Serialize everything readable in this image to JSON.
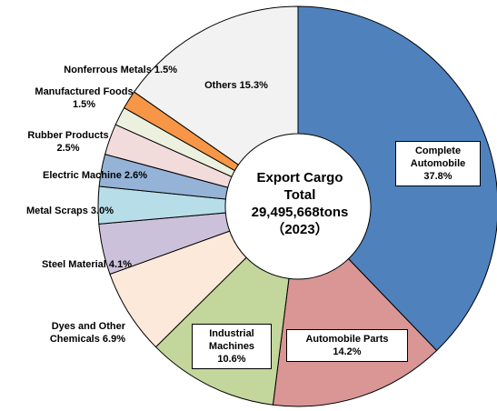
{
  "chart_data": {
    "type": "donut",
    "center_label": [
      "Export Cargo",
      "Total",
      "29,495,668tons",
      "（2023）"
    ],
    "categories": [
      "Complete Automobile",
      "Automobile Parts",
      "Industrial Machines",
      "Dyes and Other Chemicals",
      "Steel Material",
      "Metal Scraps",
      "Electric Machine",
      "Rubber Products",
      "Manufactured Foods",
      "Nonferrous Metals",
      "Others"
    ],
    "values": [
      37.8,
      14.2,
      10.6,
      6.9,
      4.1,
      3.0,
      2.6,
      2.5,
      1.5,
      1.5,
      15.3
    ],
    "value_labels": [
      "37.8%",
      "14.2%",
      "10.6%",
      "6.9%",
      "4.1%",
      "3.0%",
      "2.6%",
      "2.5%",
      "1.5%",
      "1.5%",
      "15.3%"
    ],
    "colors": [
      "#4f81bd",
      "#d99694",
      "#c3d69b",
      "#fde9d9",
      "#ccc1da",
      "#b7dee8",
      "#95b3d7",
      "#f2dcdb",
      "#ebf1de",
      "#f79646",
      "#f2f2f2"
    ]
  }
}
